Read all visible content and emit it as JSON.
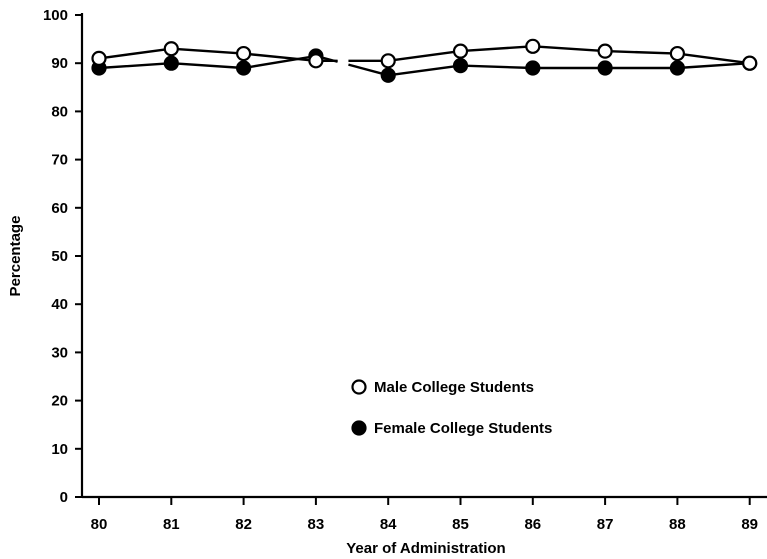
{
  "chart_data": {
    "type": "line",
    "title": "",
    "xlabel": "Year of Administration",
    "ylabel": "Percentage",
    "categories": [
      "80",
      "81",
      "82",
      "83",
      "84",
      "85",
      "86",
      "87",
      "88",
      "89"
    ],
    "ylim": [
      0,
      100
    ],
    "yticks": [
      "0",
      "10",
      "20",
      "30",
      "40",
      "50",
      "60",
      "70",
      "80",
      "90",
      "100"
    ],
    "grid": false,
    "legend_position": "lower-center",
    "break_between": [
      "83",
      "84"
    ],
    "series": [
      {
        "name": "Male College Students",
        "marker": "open-circle",
        "color": "#000000",
        "values": [
          91,
          93,
          92,
          90.5,
          90.5,
          92.5,
          93.5,
          92.5,
          92,
          90
        ]
      },
      {
        "name": "Female College Students",
        "marker": "filled-circle",
        "color": "#000000",
        "values": [
          89,
          90,
          89,
          91.5,
          87.5,
          89.5,
          89,
          89,
          89,
          90
        ]
      }
    ]
  }
}
